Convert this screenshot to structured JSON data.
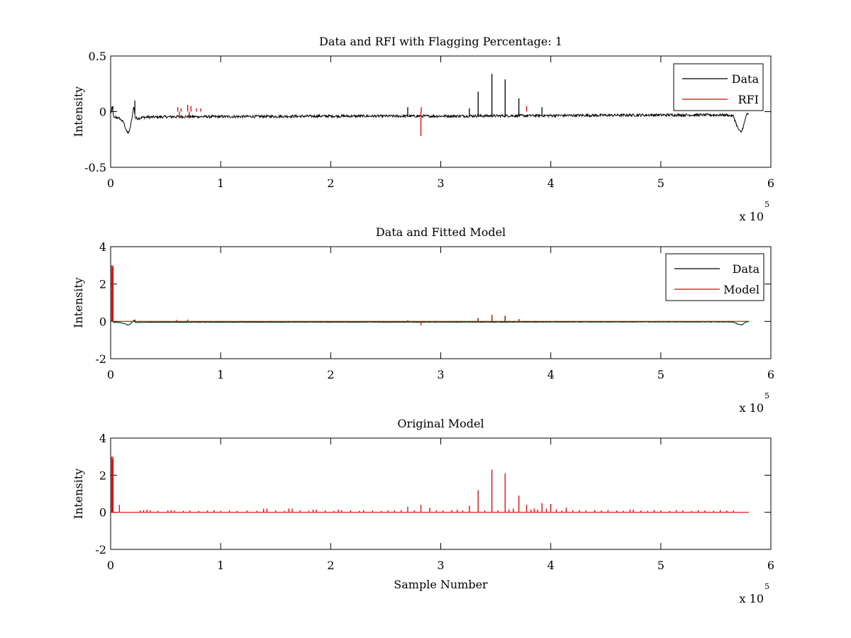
{
  "chart_data": [
    {
      "type": "line",
      "title": "Data and RFI with Flagging Percentage: 1",
      "xlabel": "",
      "ylabel": "Intensity",
      "xlim": [
        0,
        600000
      ],
      "ylim": [
        -0.5,
        0.5
      ],
      "x_ticks": [
        0,
        100000,
        200000,
        300000,
        400000,
        500000,
        600000
      ],
      "x_tick_labels": [
        "0",
        "1",
        "2",
        "3",
        "4",
        "5",
        "6"
      ],
      "y_ticks": [
        -0.5,
        0,
        0.5
      ],
      "y_tick_labels": [
        "-0.5",
        "0",
        "0.5"
      ],
      "x_exponent": {
        "base": "x 10",
        "power": "5"
      },
      "legend": {
        "position": "top-right"
      },
      "series": [
        {
          "name": "Data",
          "color": "#000000",
          "baseline": -0.04,
          "noise": 0.012,
          "x": [
            0,
            1500,
            3000,
            5000,
            8000,
            12000,
            15000,
            17000,
            19000,
            21000,
            22500,
            25000,
            30000,
            60000,
            100000,
            200000,
            300000,
            400000,
            500000,
            560000,
            566000,
            570000,
            573000,
            576000,
            578000,
            580000
          ],
          "y": [
            -0.02,
            0.04,
            -0.06,
            -0.05,
            -0.06,
            -0.1,
            -0.19,
            -0.18,
            -0.08,
            0.05,
            -0.06,
            -0.06,
            -0.05,
            -0.045,
            -0.045,
            -0.04,
            -0.04,
            -0.035,
            -0.03,
            -0.03,
            -0.04,
            -0.15,
            -0.19,
            -0.1,
            -0.02,
            -0.03
          ],
          "spikes": [
            {
              "x": 2000,
              "y": 0.05
            },
            {
              "x": 22000,
              "y": 0.1
            },
            {
              "x": 270000,
              "y": 0.04
            },
            {
              "x": 326000,
              "y": 0.03
            },
            {
              "x": 334000,
              "y": 0.18
            },
            {
              "x": 346500,
              "y": 0.34
            },
            {
              "x": 358500,
              "y": 0.29
            },
            {
              "x": 371000,
              "y": 0.12
            },
            {
              "x": 392000,
              "y": 0.04
            }
          ]
        },
        {
          "name": "RFI",
          "color": "#dd0000",
          "spikes": [
            {
              "x": 61000,
              "y": 0.04
            },
            {
              "x": 62500,
              "y": -0.06
            },
            {
              "x": 64000,
              "y": 0.03
            },
            {
              "x": 70000,
              "y": 0.06
            },
            {
              "x": 71500,
              "y": -0.06
            },
            {
              "x": 73000,
              "y": 0.05
            },
            {
              "x": 78000,
              "y": 0.03
            },
            {
              "x": 82000,
              "y": 0.03
            },
            {
              "x": 282000,
              "y": -0.22
            },
            {
              "x": 282300,
              "y": 0.04
            },
            {
              "x": 378000,
              "y": 0.05
            }
          ]
        }
      ]
    },
    {
      "type": "line",
      "title": "Data and Fitted Model",
      "xlabel": "",
      "ylabel": "Intensity",
      "xlim": [
        0,
        600000
      ],
      "ylim": [
        -2,
        4
      ],
      "x_ticks": [
        0,
        100000,
        200000,
        300000,
        400000,
        500000,
        600000
      ],
      "x_tick_labels": [
        "0",
        "1",
        "2",
        "3",
        "4",
        "5",
        "6"
      ],
      "y_ticks": [
        -2,
        0,
        2,
        4
      ],
      "y_tick_labels": [
        "-2",
        "0",
        "2",
        "4"
      ],
      "x_exponent": {
        "base": "x 10",
        "power": "5"
      },
      "legend": {
        "position": "top-right"
      },
      "series": [
        {
          "name": "Data",
          "color": "#000000",
          "baseline": -0.04,
          "noise": 0.012,
          "x": [
            0,
            1500,
            3000,
            5000,
            8000,
            12000,
            15000,
            17000,
            19000,
            21000,
            22500,
            25000,
            30000,
            60000,
            100000,
            200000,
            300000,
            400000,
            500000,
            560000,
            566000,
            570000,
            573000,
            576000,
            578000,
            580000
          ],
          "y": [
            -0.02,
            0.04,
            -0.06,
            -0.05,
            -0.06,
            -0.1,
            -0.19,
            -0.18,
            -0.08,
            0.05,
            -0.06,
            -0.06,
            -0.05,
            -0.045,
            -0.045,
            -0.04,
            -0.04,
            -0.035,
            -0.03,
            -0.03,
            -0.04,
            -0.15,
            -0.19,
            -0.1,
            -0.02,
            -0.03
          ],
          "spikes": [
            {
              "x": 22000,
              "y": 0.1
            },
            {
              "x": 334000,
              "y": 0.18
            },
            {
              "x": 346500,
              "y": 0.34
            },
            {
              "x": 358500,
              "y": 0.29
            },
            {
              "x": 371000,
              "y": 0.12
            }
          ]
        },
        {
          "name": "Model",
          "color": "#dd0000",
          "baseline": 0,
          "noise": 0,
          "x": [
            0,
            580000
          ],
          "y": [
            0,
            0
          ],
          "spikes": [
            {
              "x": 1000,
              "y": 3.0
            },
            {
              "x": 1600,
              "y": 2.9
            },
            {
              "x": 2200,
              "y": 3.0
            },
            {
              "x": 60000,
              "y": 0.08
            },
            {
              "x": 70000,
              "y": 0.1
            },
            {
              "x": 270000,
              "y": 0.06
            },
            {
              "x": 282000,
              "y": -0.22
            },
            {
              "x": 334000,
              "y": 0.15
            },
            {
              "x": 346500,
              "y": 0.35
            },
            {
              "x": 358500,
              "y": 0.3
            },
            {
              "x": 371000,
              "y": 0.12
            }
          ]
        }
      ]
    },
    {
      "type": "line",
      "title": "Original Model",
      "xlabel": "Sample Number",
      "ylabel": "Intensity",
      "xlim": [
        0,
        600000
      ],
      "ylim": [
        -2,
        4
      ],
      "x_ticks": [
        0,
        100000,
        200000,
        300000,
        400000,
        500000,
        600000
      ],
      "x_tick_labels": [
        "0",
        "1",
        "2",
        "3",
        "4",
        "5",
        "6"
      ],
      "y_ticks": [
        -2,
        0,
        2,
        4
      ],
      "y_tick_labels": [
        "-2",
        "0",
        "2",
        "4"
      ],
      "x_exponent": {
        "base": "x 10",
        "power": "5"
      },
      "series": [
        {
          "name": "",
          "color": "#dd0000",
          "baseline": 0,
          "noise": 0,
          "x": [
            0,
            580000
          ],
          "y": [
            0,
            0
          ],
          "spikes": [
            {
              "x": 1000,
              "y": 3.0
            },
            {
              "x": 1600,
              "y": 2.85
            },
            {
              "x": 2200,
              "y": 3.0
            },
            {
              "x": 8000,
              "y": 0.4
            },
            {
              "x": 27000,
              "y": 0.1
            },
            {
              "x": 30000,
              "y": 0.12
            },
            {
              "x": 33000,
              "y": 0.15
            },
            {
              "x": 36000,
              "y": 0.1
            },
            {
              "x": 43000,
              "y": 0.08
            },
            {
              "x": 52000,
              "y": 0.1
            },
            {
              "x": 55000,
              "y": 0.12
            },
            {
              "x": 58000,
              "y": 0.1
            },
            {
              "x": 66000,
              "y": 0.08
            },
            {
              "x": 72000,
              "y": 0.1
            },
            {
              "x": 80000,
              "y": 0.08
            },
            {
              "x": 88000,
              "y": 0.1
            },
            {
              "x": 94000,
              "y": 0.12
            },
            {
              "x": 100000,
              "y": 0.08
            },
            {
              "x": 108000,
              "y": 0.1
            },
            {
              "x": 115000,
              "y": 0.08
            },
            {
              "x": 124000,
              "y": 0.1
            },
            {
              "x": 133000,
              "y": 0.08
            },
            {
              "x": 139000,
              "y": 0.2
            },
            {
              "x": 142000,
              "y": 0.2
            },
            {
              "x": 150000,
              "y": 0.1
            },
            {
              "x": 158000,
              "y": 0.08
            },
            {
              "x": 162000,
              "y": 0.2
            },
            {
              "x": 165000,
              "y": 0.2
            },
            {
              "x": 172000,
              "y": 0.1
            },
            {
              "x": 180000,
              "y": 0.08
            },
            {
              "x": 184000,
              "y": 0.15
            },
            {
              "x": 187000,
              "y": 0.15
            },
            {
              "x": 195000,
              "y": 0.1
            },
            {
              "x": 203000,
              "y": 0.08
            },
            {
              "x": 207000,
              "y": 0.15
            },
            {
              "x": 210000,
              "y": 0.12
            },
            {
              "x": 218000,
              "y": 0.1
            },
            {
              "x": 226000,
              "y": 0.08
            },
            {
              "x": 230000,
              "y": 0.12
            },
            {
              "x": 238000,
              "y": 0.1
            },
            {
              "x": 246000,
              "y": 0.08
            },
            {
              "x": 252000,
              "y": 0.1
            },
            {
              "x": 258000,
              "y": 0.1
            },
            {
              "x": 264000,
              "y": 0.12
            },
            {
              "x": 270000,
              "y": 0.3
            },
            {
              "x": 276000,
              "y": 0.1
            },
            {
              "x": 282000,
              "y": 0.4
            },
            {
              "x": 290000,
              "y": 0.25
            },
            {
              "x": 296000,
              "y": 0.1
            },
            {
              "x": 302000,
              "y": 0.1
            },
            {
              "x": 310000,
              "y": 0.12
            },
            {
              "x": 315000,
              "y": 0.15
            },
            {
              "x": 320000,
              "y": 0.1
            },
            {
              "x": 326000,
              "y": 0.35
            },
            {
              "x": 334000,
              "y": 1.2
            },
            {
              "x": 340000,
              "y": 0.1
            },
            {
              "x": 346500,
              "y": 2.3
            },
            {
              "x": 352000,
              "y": 0.1
            },
            {
              "x": 358500,
              "y": 2.1
            },
            {
              "x": 362000,
              "y": 0.15
            },
            {
              "x": 366000,
              "y": 0.2
            },
            {
              "x": 371000,
              "y": 0.9
            },
            {
              "x": 378000,
              "y": 0.4
            },
            {
              "x": 382000,
              "y": 0.15
            },
            {
              "x": 385000,
              "y": 0.2
            },
            {
              "x": 388000,
              "y": 0.15
            },
            {
              "x": 392000,
              "y": 0.5
            },
            {
              "x": 396000,
              "y": 0.2
            },
            {
              "x": 400000,
              "y": 0.45
            },
            {
              "x": 405000,
              "y": 0.15
            },
            {
              "x": 410000,
              "y": 0.1
            },
            {
              "x": 414000,
              "y": 0.25
            },
            {
              "x": 420000,
              "y": 0.1
            },
            {
              "x": 426000,
              "y": 0.12
            },
            {
              "x": 432000,
              "y": 0.1
            },
            {
              "x": 440000,
              "y": 0.12
            },
            {
              "x": 446000,
              "y": 0.1
            },
            {
              "x": 452000,
              "y": 0.12
            },
            {
              "x": 460000,
              "y": 0.1
            },
            {
              "x": 466000,
              "y": 0.08
            },
            {
              "x": 472000,
              "y": 0.15
            },
            {
              "x": 475000,
              "y": 0.15
            },
            {
              "x": 482000,
              "y": 0.1
            },
            {
              "x": 488000,
              "y": 0.08
            },
            {
              "x": 494000,
              "y": 0.12
            },
            {
              "x": 500000,
              "y": 0.1
            },
            {
              "x": 508000,
              "y": 0.08
            },
            {
              "x": 514000,
              "y": 0.12
            },
            {
              "x": 520000,
              "y": 0.1
            },
            {
              "x": 528000,
              "y": 0.08
            },
            {
              "x": 534000,
              "y": 0.12
            },
            {
              "x": 540000,
              "y": 0.1
            },
            {
              "x": 548000,
              "y": 0.08
            },
            {
              "x": 554000,
              "y": 0.12
            },
            {
              "x": 560000,
              "y": 0.1
            },
            {
              "x": 566000,
              "y": 0.1
            }
          ]
        }
      ]
    }
  ]
}
